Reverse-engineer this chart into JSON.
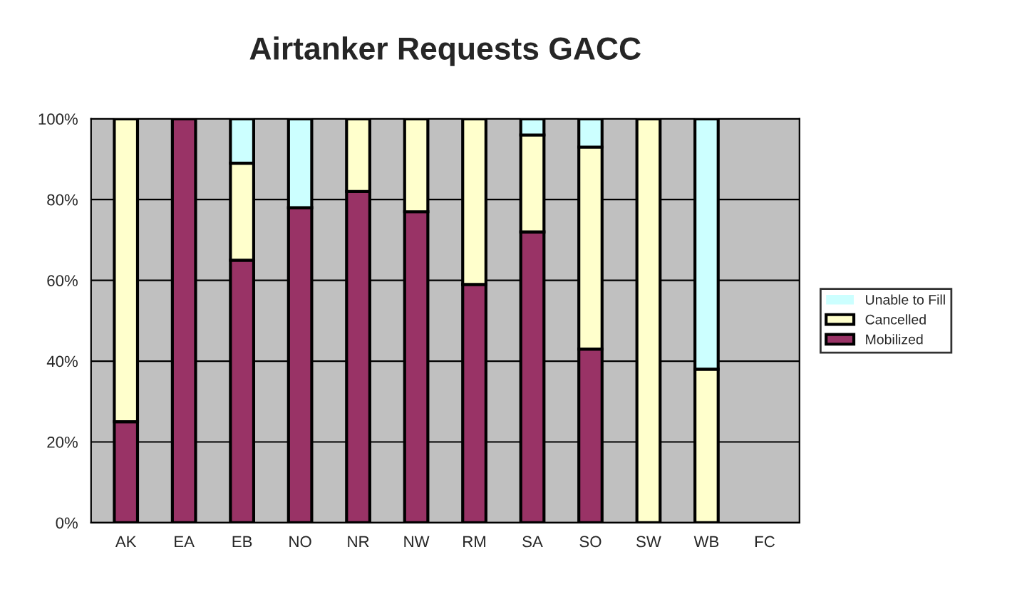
{
  "chart_data": {
    "type": "bar",
    "title": "Airtanker Requests GACC",
    "stacked": true,
    "categories": [
      "AK",
      "EA",
      "EB",
      "NO",
      "NR",
      "NW",
      "RM",
      "SA",
      "SO",
      "SW",
      "WB",
      "FC"
    ],
    "series": [
      {
        "name": "Mobilized",
        "color": "#993366",
        "values": [
          25,
          100,
          65,
          78,
          82,
          77,
          59,
          72,
          43,
          0,
          0,
          0
        ]
      },
      {
        "name": "Cancelled",
        "color": "#ffffcc",
        "values": [
          75,
          0,
          24,
          0,
          18,
          23,
          41,
          24,
          50,
          100,
          38,
          0
        ]
      },
      {
        "name": "Unable to Fill",
        "color": "#ccffff",
        "values": [
          0,
          0,
          11,
          22,
          0,
          0,
          0,
          4,
          7,
          0,
          62,
          0
        ]
      }
    ],
    "ylim": [
      0,
      100
    ],
    "yticks": [
      {
        "value": 0,
        "label": "0%"
      },
      {
        "value": 20,
        "label": "20%"
      },
      {
        "value": 40,
        "label": "40%"
      },
      {
        "value": 60,
        "label": "60%"
      },
      {
        "value": 80,
        "label": "80%"
      },
      {
        "value": 100,
        "label": "100%"
      }
    ],
    "grid": "y",
    "legend": "right"
  }
}
